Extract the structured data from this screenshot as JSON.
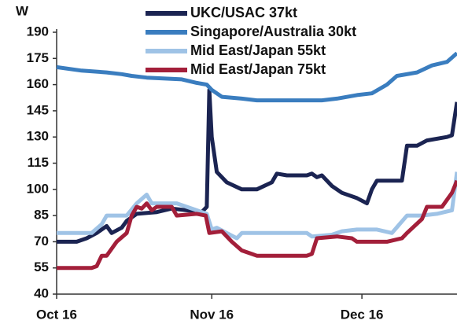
{
  "chart_data": {
    "type": "line",
    "ylabel": "W",
    "xlim": [
      0,
      80
    ],
    "xticks": [
      {
        "value": 0,
        "label": "Oct 16"
      },
      {
        "value": 31,
        "label": "Nov 16"
      },
      {
        "value": 61,
        "label": "Dec 16"
      }
    ],
    "ylim": [
      40,
      190
    ],
    "yticks": [
      40,
      55,
      70,
      85,
      100,
      115,
      130,
      145,
      160,
      175,
      190
    ],
    "legend": "top",
    "series": [
      {
        "name": "UKC/USAC 37kt",
        "color": "#1b2452",
        "x": [
          0,
          4,
          6,
          8,
          10,
          11,
          13,
          14,
          16,
          20,
          23,
          26,
          29,
          30,
          30.5,
          31,
          32,
          34,
          37,
          40,
          43,
          44,
          46,
          50,
          51,
          52,
          53,
          55,
          57,
          60,
          62,
          63,
          64,
          68,
          69,
          70,
          72,
          74,
          78,
          79,
          80
        ],
        "values": [
          70,
          70,
          72,
          75,
          79,
          75,
          78,
          82,
          86,
          87,
          89,
          88,
          87,
          90,
          157,
          130,
          110,
          104,
          100,
          100,
          104,
          109,
          108,
          108,
          109,
          107,
          108,
          102,
          98,
          95,
          92,
          100,
          105,
          105,
          105,
          125,
          125,
          128,
          130,
          131,
          150
        ]
      },
      {
        "name": "Singapore/Australia 30kt",
        "color": "#3a7dbf",
        "x": [
          0,
          5,
          10,
          13,
          15,
          18,
          25,
          28,
          30,
          31,
          33,
          37,
          40,
          45,
          50,
          53,
          56,
          60,
          63,
          66,
          68,
          72,
          75,
          78,
          80
        ],
        "values": [
          170,
          168,
          167,
          166,
          165,
          164,
          163,
          161,
          160,
          157,
          153,
          152,
          151,
          151,
          151,
          151,
          152,
          154,
          155,
          160,
          165,
          167,
          171,
          173,
          178
        ]
      },
      {
        "name": "Mid East/Japan 55kt",
        "color": "#9fc3e6",
        "x": [
          0,
          7,
          9,
          10,
          14,
          16,
          18,
          19,
          24,
          26,
          28,
          30,
          31,
          32,
          34,
          36,
          37,
          50,
          51,
          55,
          57,
          60,
          64,
          67,
          70,
          73,
          76,
          79,
          80
        ],
        "values": [
          75,
          75,
          80,
          85,
          85,
          92,
          97,
          92,
          92,
          90,
          88,
          86,
          77,
          78,
          75,
          72,
          75,
          75,
          73,
          74,
          76,
          77,
          77,
          75,
          85,
          85,
          86,
          88,
          110
        ]
      },
      {
        "name": "Mid East/Japan 75kt",
        "color": "#a31f3a",
        "x": [
          0,
          7,
          8,
          9,
          10,
          12,
          14,
          15,
          16,
          17,
          18,
          19,
          20,
          23,
          24,
          28,
          29.8,
          30.5,
          33,
          35,
          37,
          39,
          40,
          50,
          51,
          52,
          56,
          59,
          60,
          66,
          69,
          70,
          73,
          74,
          77,
          79,
          80
        ],
        "values": [
          55,
          55,
          56,
          62,
          62,
          70,
          75,
          85,
          90,
          89,
          92,
          88,
          90,
          90,
          85,
          86,
          85,
          75,
          76,
          70,
          65,
          63,
          62,
          62,
          63,
          72,
          73,
          72,
          70,
          70,
          72,
          75,
          83,
          90,
          90,
          98,
          105
        ]
      }
    ]
  }
}
